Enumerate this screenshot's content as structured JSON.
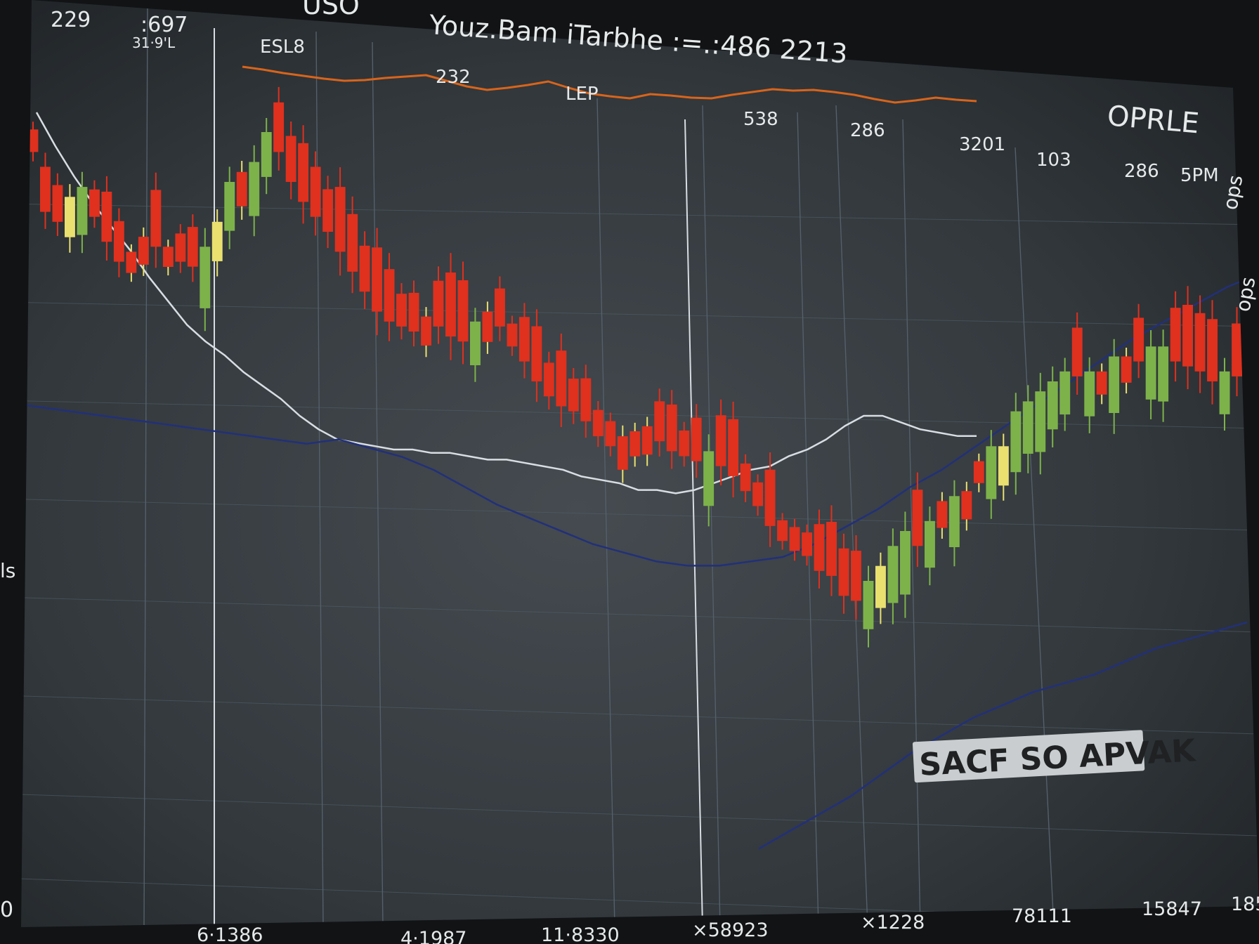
{
  "header": {
    "title": "Youz.Bam iTarbhe :=.:486 2213",
    "title_left_fragment": "USO",
    "badge": "OPRLE",
    "caption": "SACF SO APVAK",
    "top_left_values": [
      "229",
      ":697",
      "31·9'L"
    ],
    "side_left_labels": [
      "ls",
      "0"
    ],
    "side_right_labels": [
      "ops",
      "ops"
    ]
  },
  "chart_data": {
    "type": "candlestick",
    "colors": {
      "background": "#2f3438",
      "grid": "#55606a",
      "bear": "#e0301e",
      "bull_yellow": "#e9e070",
      "bull_green": "#7db24a",
      "orange_line": "#d8641b",
      "white_line": "#d7dde2",
      "navy_line": "#22307a",
      "caption_bg": "#c9cdcf"
    },
    "candles": {
      "values": [
        70,
        72,
        66,
        54,
        52,
        57,
        59,
        53,
        48,
        44,
        46,
        49,
        47,
        47,
        44,
        43,
        47,
        52,
        60,
        62,
        64,
        70,
        66,
        60,
        56,
        53,
        50,
        46,
        42,
        38,
        34,
        32,
        31,
        30,
        33,
        31,
        29,
        28,
        32,
        34,
        31,
        27,
        24,
        20,
        17,
        15,
        14,
        12,
        9,
        7,
        9,
        10,
        11,
        8,
        6,
        5,
        4,
        6,
        3,
        1,
        -2,
        -5,
        -9,
        -12,
        -14,
        -15,
        -18,
        -19,
        -23,
        -24,
        -20,
        -17,
        -13,
        -10,
        -13,
        -8,
        -4,
        -3,
        -2,
        4,
        7,
        7,
        14,
        16,
        18,
        20,
        22,
        21,
        22,
        22,
        25,
        25,
        24,
        27,
        27,
        24,
        23,
        22,
        20,
        22,
        21,
        19
      ]
    },
    "series": [
      {
        "name": "",
        "role": "orange-line",
        "values": [
          150,
          146,
          141,
          137,
          133,
          130,
          131,
          134,
          136,
          138,
          130,
          122,
          117,
          120,
          124,
          129,
          120,
          112,
          108,
          105,
          111,
          109,
          106,
          105,
          110,
          114,
          118,
          116,
          117,
          114,
          110,
          104,
          99,
          102,
          106,
          103,
          101
        ]
      },
      {
        "name": "",
        "role": "white-line",
        "values": [
          100,
          90,
          81,
          73,
          66,
          59,
          51,
          44,
          37,
          32,
          28,
          23,
          19,
          15,
          10,
          6,
          3,
          2,
          1,
          0,
          0,
          -1,
          -1,
          -2,
          -3,
          -3,
          -4,
          -5,
          -6,
          -8,
          -9,
          -10,
          -12,
          -12,
          -13,
          -12,
          -10,
          -8,
          -6,
          -5,
          -2,
          0,
          3,
          7,
          10,
          10,
          8,
          6,
          5,
          4,
          4
        ]
      },
      {
        "name": "",
        "role": "navy-line",
        "values": [
          70,
          69,
          68,
          67,
          66,
          65,
          64,
          63,
          62,
          61,
          62,
          60,
          58,
          55,
          51,
          47,
          44,
          41,
          38,
          36,
          34,
          33,
          33,
          34,
          35,
          38,
          42,
          46,
          51,
          55,
          60,
          65,
          70,
          75,
          80,
          85,
          89,
          93,
          97,
          100
        ]
      },
      {
        "name": "",
        "role": "navy-line-2",
        "values": [
          -32,
          -28,
          -24,
          -20,
          -15,
          -10,
          -6,
          -2,
          1,
          4,
          6,
          8,
          11,
          14,
          16,
          18,
          20
        ]
      }
    ],
    "top_labels": [
      "ESL8",
      "232",
      "LEP",
      "538",
      "286",
      "3201",
      "103",
      "286",
      "5PM"
    ],
    "bottom_labels": [
      "6·1386",
      "4·1987",
      "11·8330",
      "×58923",
      "×1228",
      "78111",
      "15847",
      "185"
    ],
    "grid": true,
    "legend": "none"
  }
}
